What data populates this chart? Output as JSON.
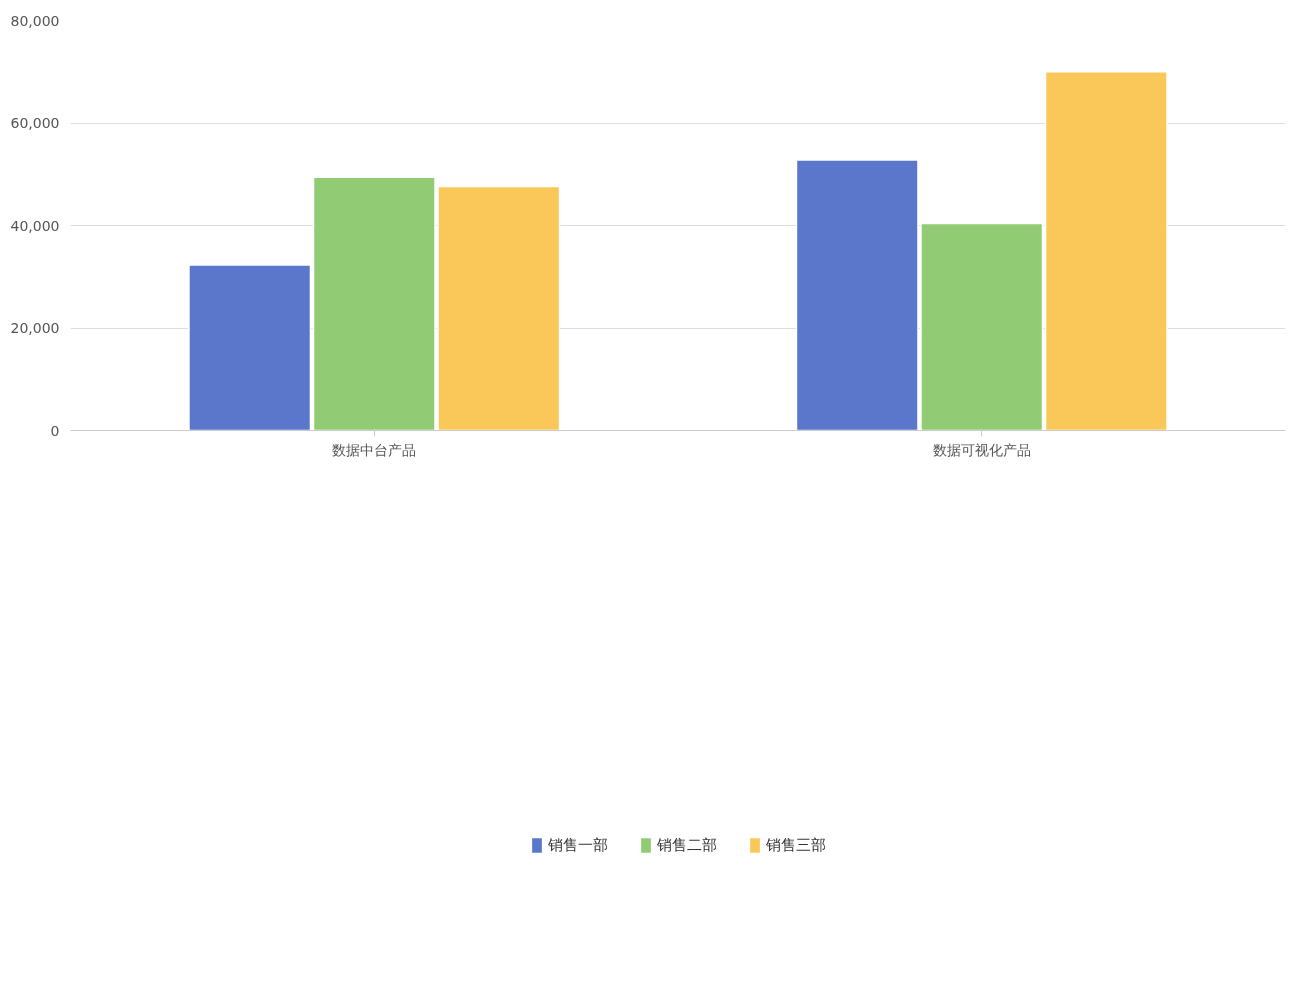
{
  "chart_data": {
    "type": "bar",
    "categories": [
      "数据中台产品",
      "数据可视化产品"
    ],
    "series": [
      {
        "name": "销售一部",
        "color": "#5b77cc",
        "values": [
          32300,
          52800
        ]
      },
      {
        "name": "销售二部",
        "color": "#91cc75",
        "values": [
          49400,
          40400
        ]
      },
      {
        "name": "销售三部",
        "color": "#fac858",
        "values": [
          47600,
          70000
        ]
      }
    ],
    "ylim": [
      0,
      80000
    ],
    "yticks": [
      {
        "value": 0,
        "label": "0"
      },
      {
        "value": 20000,
        "label": "20,000"
      },
      {
        "value": 40000,
        "label": "40,000"
      },
      {
        "value": 60000,
        "label": "60,000"
      },
      {
        "value": 80000,
        "label": "80,000"
      }
    ],
    "grid": "y",
    "legend": "bottom"
  }
}
